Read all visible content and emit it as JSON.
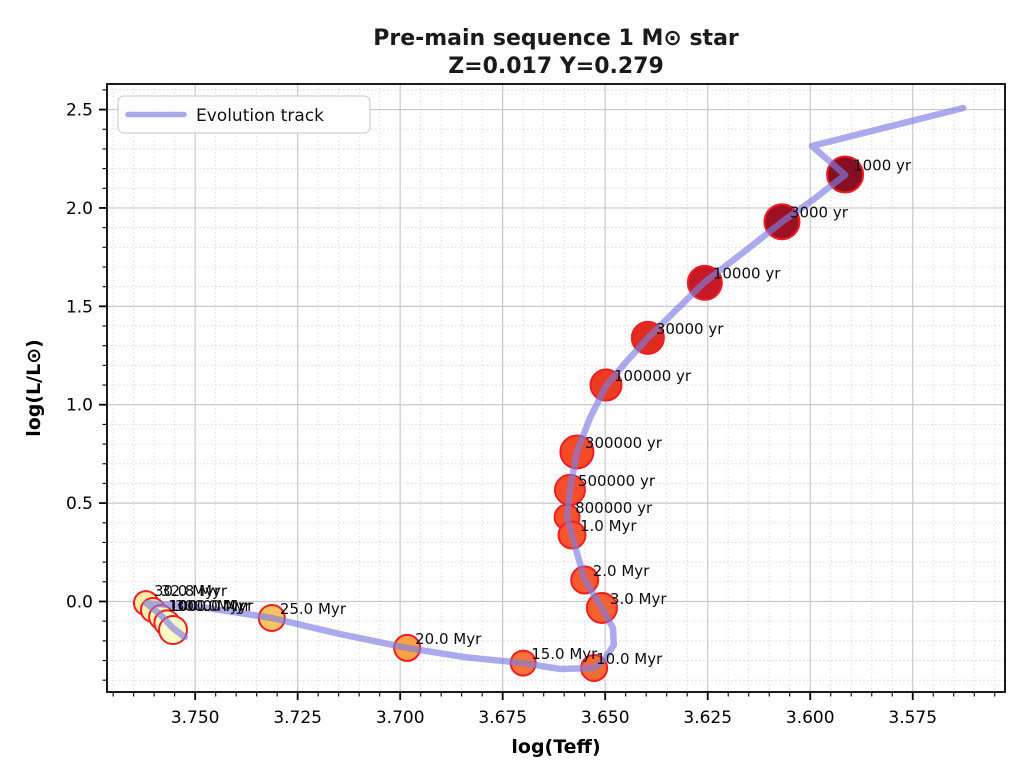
{
  "title": {
    "line1": "Pre-main sequence 1 M⊙ star",
    "line2": "Z=0.017 Y=0.279"
  },
  "legend": {
    "label": "Evolution track"
  },
  "chart_data": {
    "type": "line+scatter",
    "title": "Pre-main sequence 1 M⊙ star  Z=0.017 Y=0.279",
    "xlabel": "log(Teff)",
    "ylabel": "log(L/L⊙)",
    "x_inverted": true,
    "xlim": [
      3.7715,
      3.5525
    ],
    "ylim": [
      -0.46,
      2.63
    ],
    "grid": true,
    "x_minor_step": 0.005,
    "y_minor_step": 0.1,
    "x_ticks": [
      {
        "v": 3.75,
        "label": "3.750"
      },
      {
        "v": 3.725,
        "label": "3.725"
      },
      {
        "v": 3.7,
        "label": "3.700"
      },
      {
        "v": 3.675,
        "label": "3.675"
      },
      {
        "v": 3.65,
        "label": "3.650"
      },
      {
        "v": 3.625,
        "label": "3.625"
      },
      {
        "v": 3.6,
        "label": "3.600"
      },
      {
        "v": 3.575,
        "label": "3.575"
      }
    ],
    "y_ticks": [
      {
        "v": 0.0,
        "label": "0.0"
      },
      {
        "v": 0.5,
        "label": "0.5"
      },
      {
        "v": 1.0,
        "label": "1.0"
      },
      {
        "v": 1.5,
        "label": "1.5"
      },
      {
        "v": 2.0,
        "label": "2.0"
      },
      {
        "v": 2.5,
        "label": "2.5"
      }
    ],
    "track_color": "#7d7de2",
    "track_opacity": 0.65,
    "point_edge_color": "#f11d23",
    "grid_major_color": "#c9c9c9",
    "grid_minor_color": "#dcdcdc",
    "track": [
      [
        3.5627,
        2.508
      ],
      [
        3.5996,
        2.315
      ],
      [
        3.5915,
        2.168
      ],
      [
        3.5991,
        2.045
      ],
      [
        3.6069,
        1.929
      ],
      [
        3.6162,
        1.776
      ],
      [
        3.6257,
        1.624
      ],
      [
        3.6327,
        1.481
      ],
      [
        3.6396,
        1.339
      ],
      [
        3.6449,
        1.217
      ],
      [
        3.6498,
        1.095
      ],
      [
        3.6537,
        0.933
      ],
      [
        3.6569,
        0.76
      ],
      [
        3.6586,
        0.567
      ],
      [
        3.6593,
        0.429
      ],
      [
        3.6581,
        0.338
      ],
      [
        3.6566,
        0.226
      ],
      [
        3.655,
        0.109
      ],
      [
        3.6508,
        -0.033
      ],
      [
        3.6481,
        -0.135
      ],
      [
        3.6479,
        -0.221
      ],
      [
        3.6503,
        -0.297
      ],
      [
        3.6527,
        -0.338
      ],
      [
        3.661,
        -0.343
      ],
      [
        3.67,
        -0.313
      ],
      [
        3.6842,
        -0.283
      ],
      [
        3.6983,
        -0.236
      ],
      [
        3.7147,
        -0.165
      ],
      [
        3.7313,
        -0.084
      ],
      [
        3.7469,
        -0.033
      ],
      [
        3.762,
        -0.008
      ],
      [
        3.7586,
        -0.064
      ],
      [
        3.7554,
        -0.135
      ],
      [
        3.7525,
        -0.181
      ]
    ],
    "points": [
      {
        "age": "1000 yr",
        "logTeff": 3.5915,
        "logL": 2.17,
        "color": "#870f25",
        "r": 18
      },
      {
        "age": "3000 yr",
        "logTeff": 3.6069,
        "logL": 1.93,
        "color": "#9d1024",
        "r": 17.5
      },
      {
        "age": "10000 yr",
        "logTeff": 3.6257,
        "logL": 1.62,
        "color": "#c41a27",
        "r": 17
      },
      {
        "age": "30000 yr",
        "logTeff": 3.6396,
        "logL": 1.34,
        "color": "#de2c21",
        "r": 16
      },
      {
        "age": "100000 yr",
        "logTeff": 3.6498,
        "logL": 1.1,
        "color": "#ec3b23",
        "r": 15.5
      },
      {
        "age": "300000 yr",
        "logTeff": 3.6569,
        "logL": 0.76,
        "color": "#f34a28",
        "r": 16.5
      },
      {
        "age": "500000 yr",
        "logTeff": 3.6586,
        "logL": 0.567,
        "color": "#f64e2a",
        "r": 15
      },
      {
        "age": "800000 yr",
        "logTeff": 3.6593,
        "logL": 0.429,
        "color": "#f8522b",
        "r": 12.5
      },
      {
        "age": "1.0 Myr",
        "logTeff": 3.6581,
        "logL": 0.338,
        "color": "#f8552c",
        "r": 13.5
      },
      {
        "age": "2.0 Myr",
        "logTeff": 3.655,
        "logL": 0.109,
        "color": "#f85a2d",
        "r": 13.5
      },
      {
        "age": "3.0 Myr",
        "logTeff": 3.6508,
        "logL": -0.033,
        "color": "#f7602f",
        "r": 15
      },
      {
        "age": "10.0 Myr",
        "logTeff": 3.6527,
        "logL": -0.338,
        "color": "#f76b33",
        "r": 13,
        "dx": 2
      },
      {
        "age": "15.0 Myr",
        "logTeff": 3.67,
        "logL": -0.313,
        "color": "#f97338",
        "r": 12.5
      },
      {
        "age": "20.0 Myr",
        "logTeff": 3.6983,
        "logL": -0.236,
        "color": "#fba148",
        "r": 13
      },
      {
        "age": "25.0 Myr",
        "logTeff": 3.7313,
        "logL": -0.084,
        "color": "#fcc464",
        "r": 13
      },
      {
        "age": "30.0 Myr",
        "logTeff": 3.762,
        "logL": -0.008,
        "color": "#ffeda3",
        "r": 12,
        "dy": -7
      },
      {
        "age": "32.8 Myr",
        "logTeff": 3.7603,
        "logL": -0.043,
        "color": "#fff0ab",
        "r": 12,
        "dy": -14
      },
      {
        "age": "100.0 Myr",
        "logTeff": 3.7583,
        "logL": -0.079,
        "color": "#fff3b2",
        "r": 12,
        "dy": -6
      },
      {
        "age": "300.0 Myr",
        "logTeff": 3.7569,
        "logL": -0.109,
        "color": "#fff7bf",
        "r": 12.5,
        "dy": -12
      },
      {
        "age": "1000.0 Myr",
        "logTeff": 3.7554,
        "logL": -0.145,
        "color": "#fffbc8",
        "r": 14,
        "dx": -5,
        "dy": -19
      }
    ]
  }
}
